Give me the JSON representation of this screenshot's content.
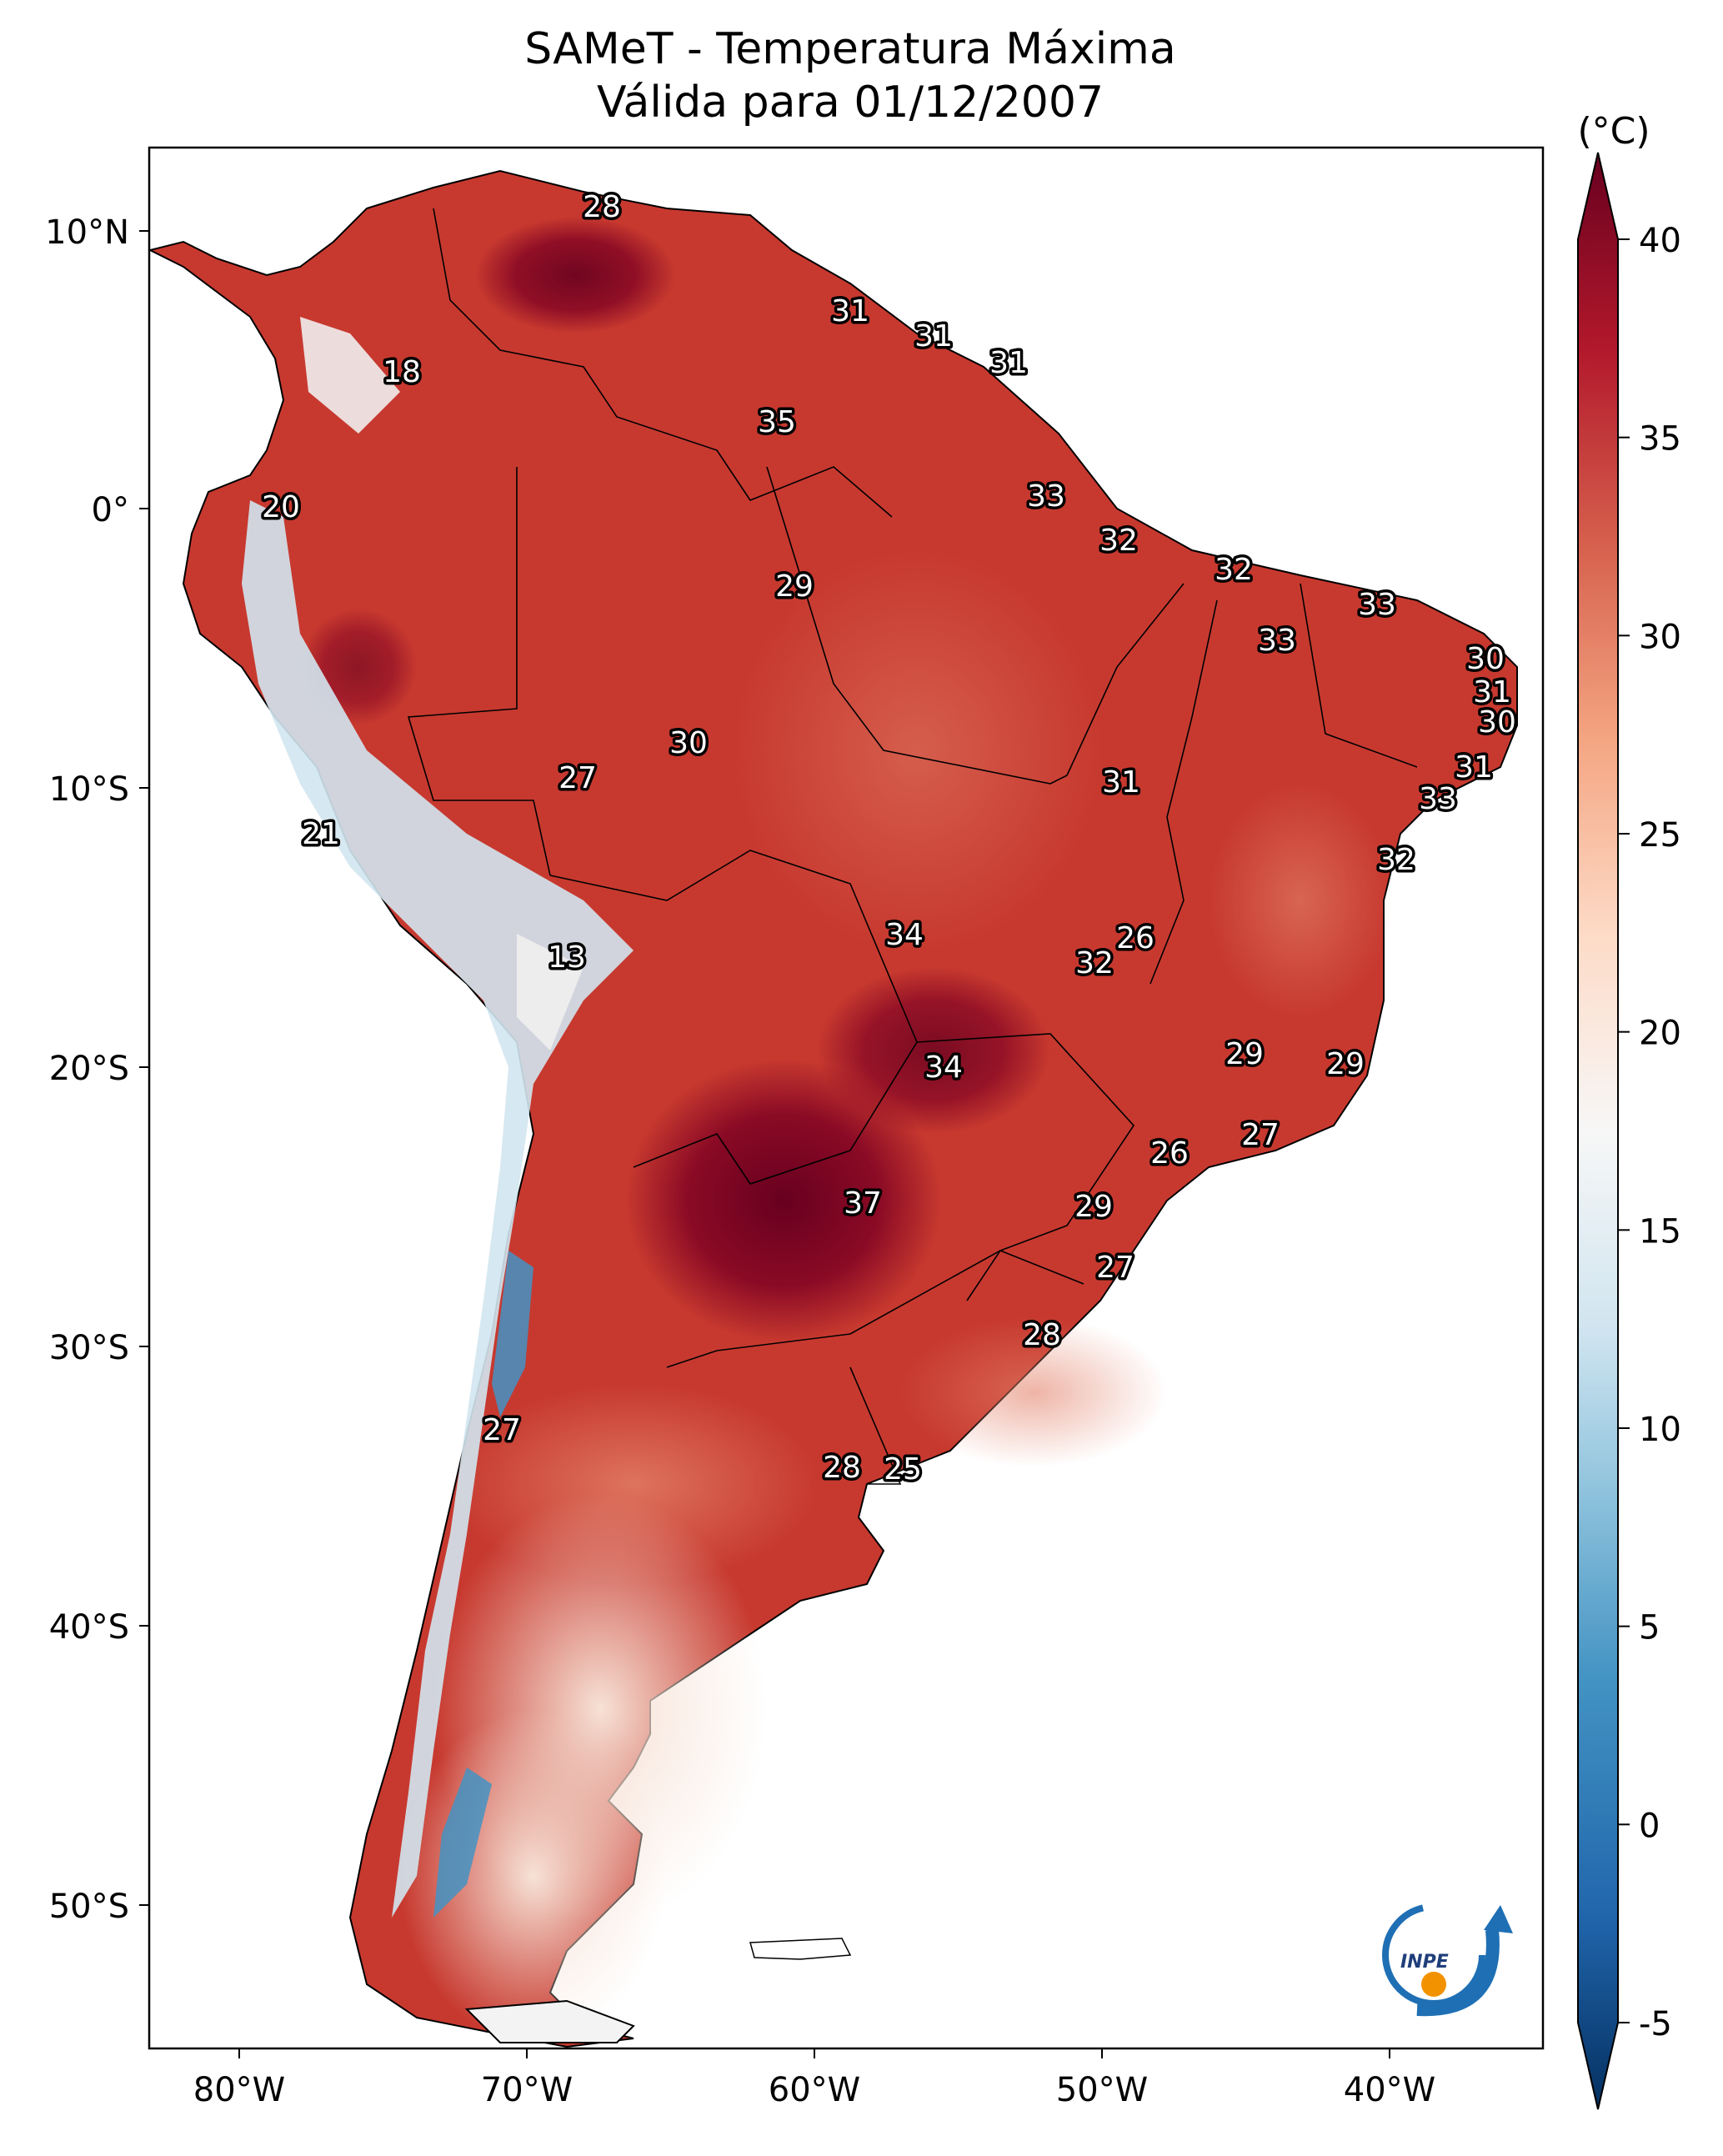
{
  "title": {
    "line1": "SAMeT - Temperatura Máxima",
    "line2": "Válida para 01/12/2007"
  },
  "lat_ticks": [
    "10°N",
    "0°",
    "10°S",
    "20°S",
    "30°S",
    "40°S",
    "50°S"
  ],
  "lon_ticks": [
    "80°W",
    "70°W",
    "60°W",
    "50°W",
    "40°W"
  ],
  "colorbar": {
    "unit": "(°C)",
    "ticks": [
      "40",
      "35",
      "30",
      "25",
      "20",
      "15",
      "10",
      "5",
      "0",
      "-5"
    ],
    "range": [
      -5,
      40
    ],
    "colors": [
      "#053061",
      "#2166ac",
      "#4393c3",
      "#92c5de",
      "#d1e5f0",
      "#f7f7f7",
      "#fddbc7",
      "#f4a582",
      "#d6604d",
      "#b2182b",
      "#67001f"
    ]
  },
  "station_labels": [
    "28",
    "31",
    "31",
    "31",
    "18",
    "35",
    "33",
    "20",
    "32",
    "29",
    "32",
    "33",
    "33",
    "30",
    "31",
    "30",
    "30",
    "27",
    "31",
    "31",
    "21",
    "33",
    "32",
    "13",
    "34",
    "26",
    "32",
    "29",
    "34",
    "29",
    "27",
    "26",
    "37",
    "29",
    "27",
    "28",
    "27",
    "28",
    "25"
  ],
  "logo": {
    "text": "INPE",
    "icon": "inpe-logo-icon"
  }
}
